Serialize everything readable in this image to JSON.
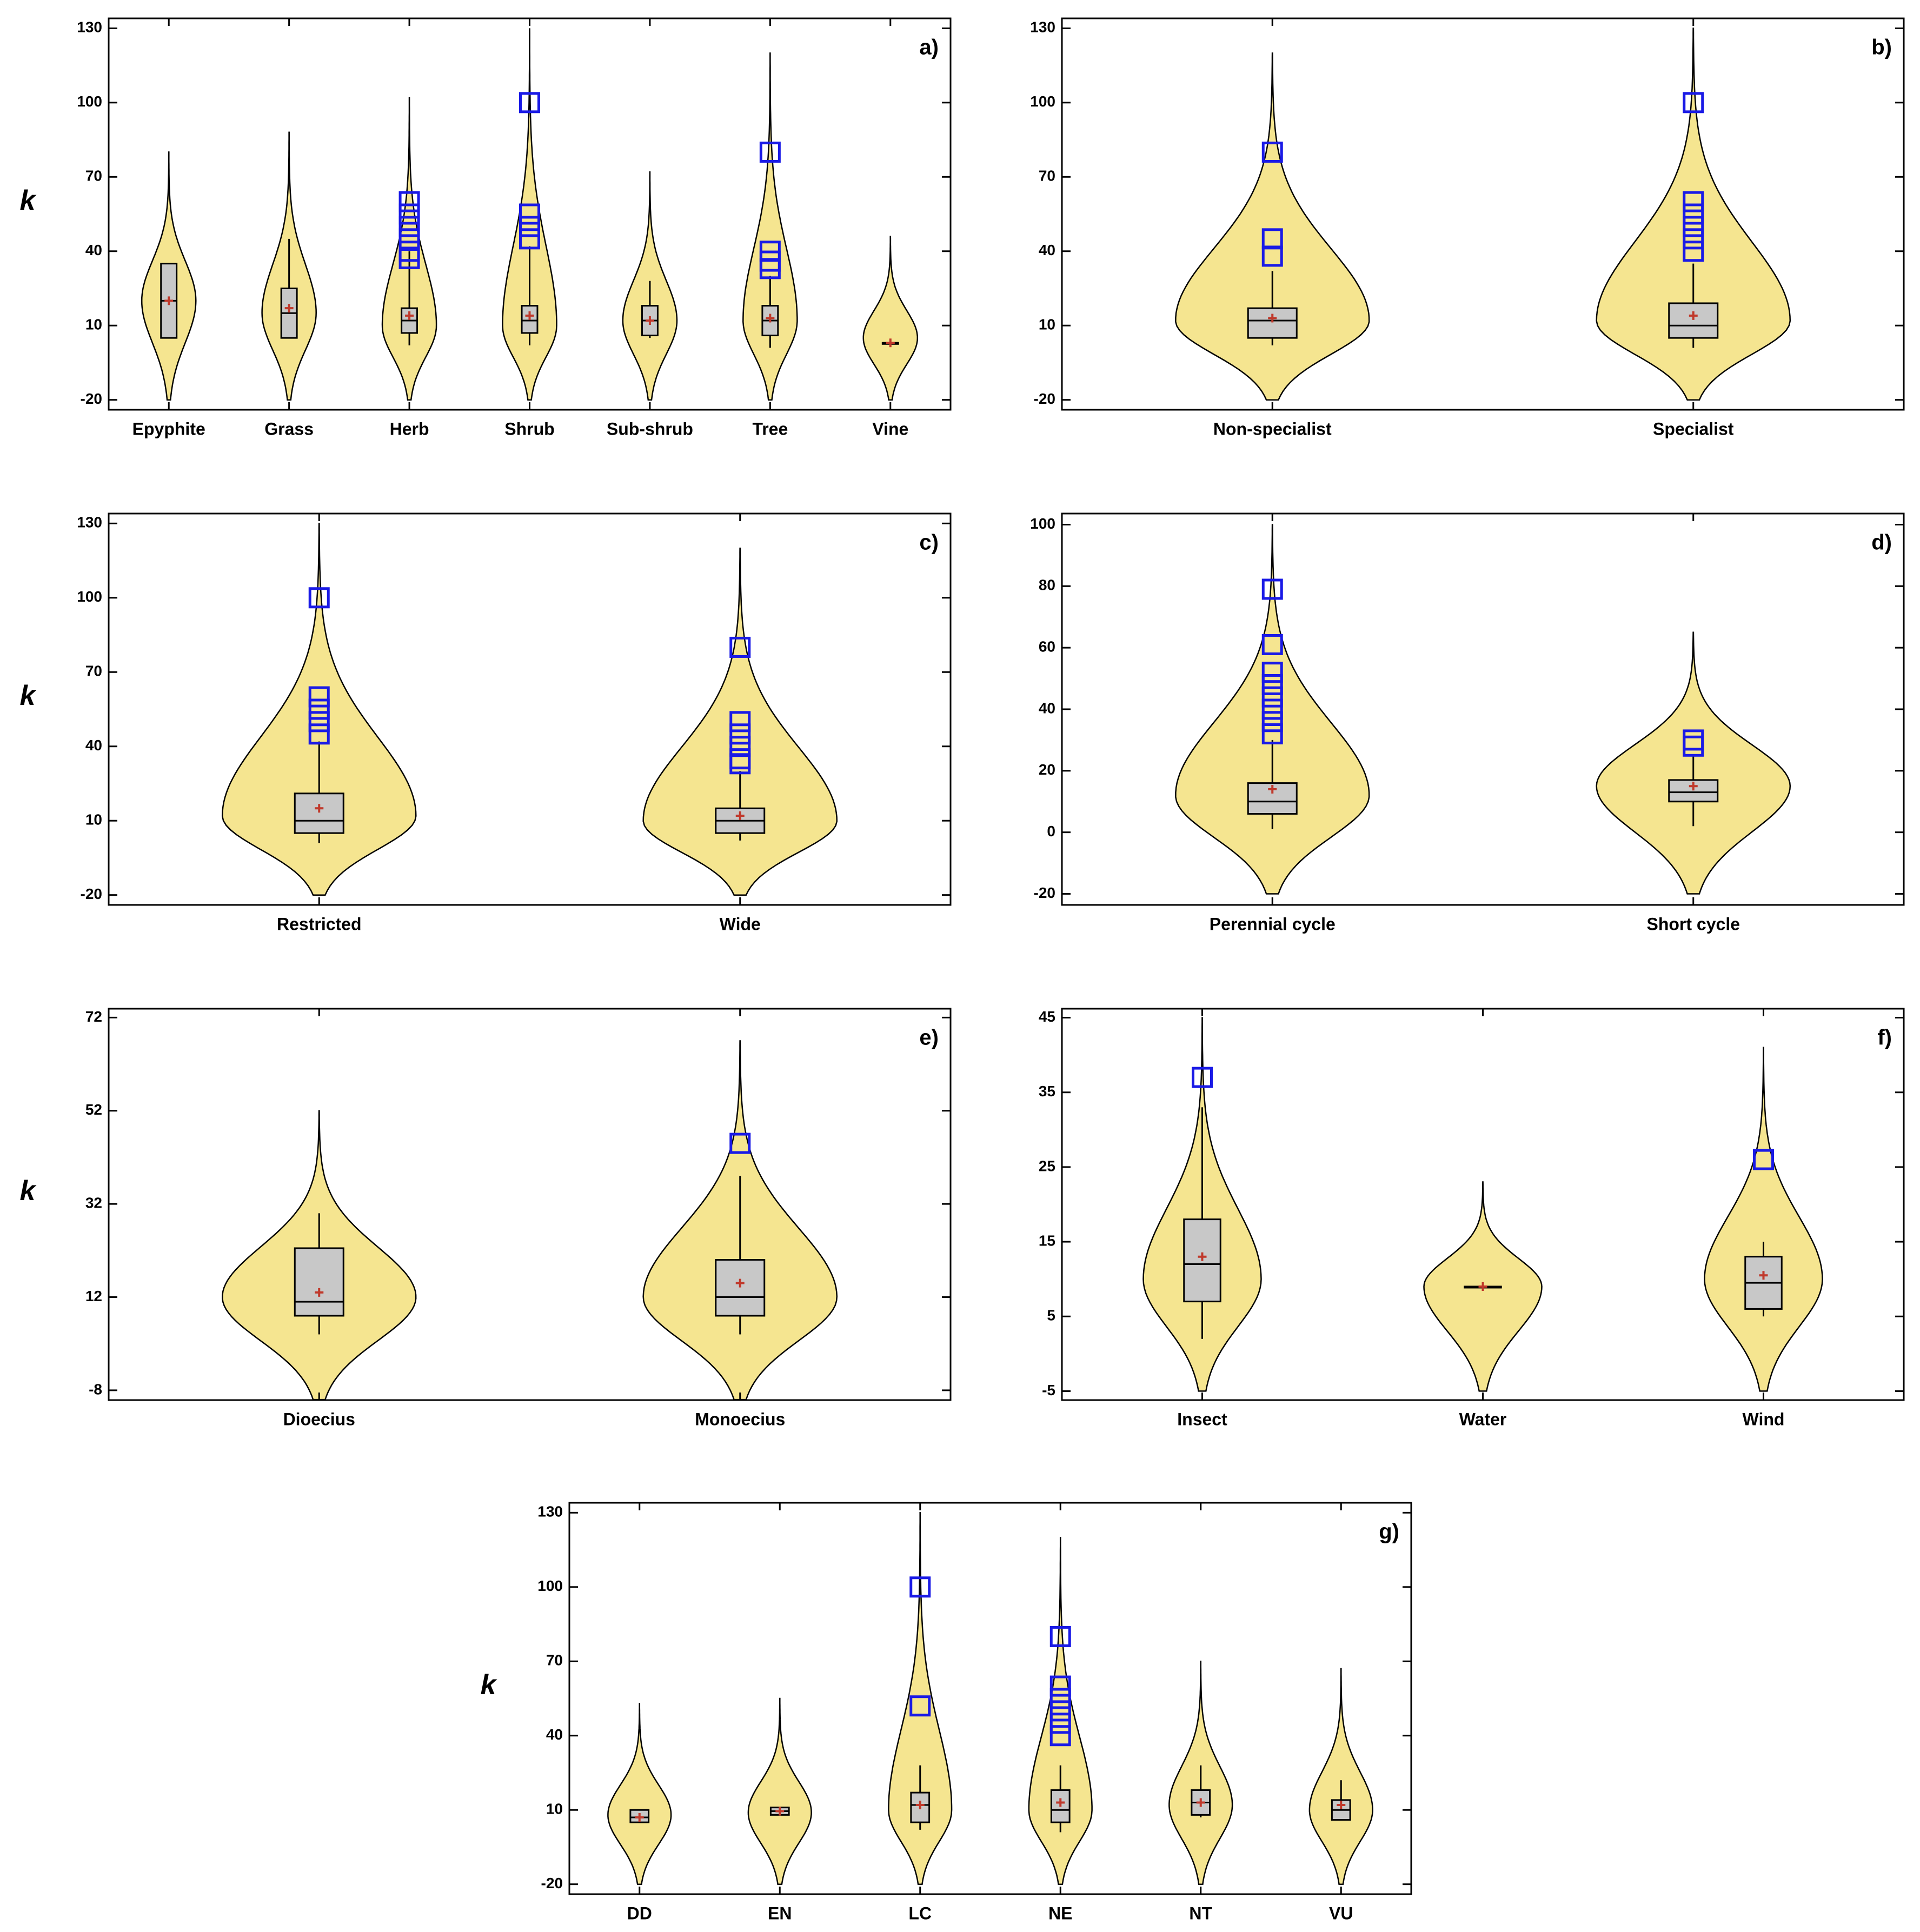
{
  "chart_data": [
    {
      "type": "violin",
      "label": "a)",
      "ylabel": "k",
      "ylim": [
        -24,
        134
      ],
      "yticks": [
        -20,
        10,
        40,
        70,
        100,
        130
      ],
      "violin_width": 0.45,
      "categories": [
        "Epyphite",
        "Grass",
        "Herb",
        "Shrub",
        "Sub-shrub",
        "Tree",
        "Vine"
      ],
      "stats": [
        {
          "low": 5,
          "q1": 5,
          "median": 20,
          "q3": 35,
          "high": 35,
          "mean": 20,
          "outliers": [],
          "violin": [
            -20,
            80,
            20
          ]
        },
        {
          "low": 5,
          "q1": 5,
          "median": 15,
          "q3": 25,
          "high": 45,
          "mean": 17,
          "outliers": [],
          "violin": [
            -20,
            88,
            15
          ]
        },
        {
          "low": 2,
          "q1": 7,
          "median": 12,
          "q3": 17,
          "high": 40,
          "mean": 14,
          "outliers": [
            60,
            55,
            50,
            45,
            40,
            37
          ],
          "violin": [
            -20,
            102,
            10
          ]
        },
        {
          "low": 2,
          "q1": 7,
          "median": 12,
          "q3": 18,
          "high": 42,
          "mean": 14,
          "outliers": [
            100,
            55,
            50,
            45
          ],
          "violin": [
            -20,
            130,
            10
          ]
        },
        {
          "low": 5,
          "q1": 6,
          "median": 12,
          "q3": 18,
          "high": 28,
          "mean": 12,
          "outliers": [],
          "violin": [
            -20,
            72,
            12
          ]
        },
        {
          "low": 1,
          "q1": 6,
          "median": 12,
          "q3": 18,
          "high": 30,
          "mean": 13,
          "outliers": [
            80,
            40,
            36,
            33
          ],
          "violin": [
            -20,
            120,
            12
          ]
        },
        {
          "low": 3,
          "q1": 3,
          "median": 3,
          "q3": 3,
          "high": 3,
          "mean": 3,
          "outliers": [],
          "violin": [
            -20,
            46,
            5
          ]
        }
      ]
    },
    {
      "type": "violin",
      "label": "b)",
      "ylim": [
        -24,
        134
      ],
      "yticks": [
        -20,
        10,
        40,
        70,
        100,
        130
      ],
      "violin_width": 0.46,
      "categories": [
        "Non-specialist",
        "Specialist"
      ],
      "stats": [
        {
          "low": 2,
          "q1": 5,
          "median": 12,
          "q3": 17,
          "high": 32,
          "mean": 13,
          "outliers": [
            80,
            45,
            38
          ],
          "violin": [
            -20,
            120,
            12
          ]
        },
        {
          "low": 1,
          "q1": 5,
          "median": 10,
          "q3": 19,
          "high": 35,
          "mean": 14,
          "outliers": [
            100,
            60,
            55,
            50,
            45,
            40
          ],
          "violin": [
            -20,
            130,
            12
          ]
        }
      ]
    },
    {
      "type": "violin",
      "label": "c)",
      "ylabel": "k",
      "ylim": [
        -24,
        134
      ],
      "yticks": [
        -20,
        10,
        40,
        70,
        100,
        130
      ],
      "violin_width": 0.46,
      "categories": [
        "Restricted",
        "Wide"
      ],
      "stats": [
        {
          "low": 1,
          "q1": 5,
          "median": 10,
          "q3": 21,
          "high": 42,
          "mean": 15,
          "outliers": [
            100,
            60,
            55,
            50,
            45
          ],
          "violin": [
            -20,
            130,
            12
          ]
        },
        {
          "low": 2,
          "q1": 5,
          "median": 10,
          "q3": 15,
          "high": 30,
          "mean": 12,
          "outliers": [
            80,
            50,
            45,
            40,
            35,
            33
          ],
          "violin": [
            -20,
            120,
            10
          ]
        }
      ]
    },
    {
      "type": "violin",
      "label": "d)",
      "ylim": [
        -23.6,
        103.6
      ],
      "yticks": [
        -20,
        0,
        20,
        40,
        60,
        80,
        100
      ],
      "violin_width": 0.46,
      "categories": [
        "Perennial cycle",
        "Short cycle"
      ],
      "stats": [
        {
          "low": 1,
          "q1": 6,
          "median": 10,
          "q3": 16,
          "high": 30,
          "mean": 14,
          "outliers": [
            79,
            61,
            52,
            48,
            44,
            40,
            36,
            32
          ],
          "violin": [
            -20,
            100,
            12
          ]
        },
        {
          "low": 2,
          "q1": 10,
          "median": 13,
          "q3": 17,
          "high": 25,
          "mean": 15,
          "outliers": [
            30,
            28
          ],
          "violin": [
            -20,
            65,
            15
          ]
        }
      ]
    },
    {
      "type": "violin",
      "label": "e)",
      "ylabel": "k",
      "ylim": [
        -10.1,
        73.9
      ],
      "yticks": [
        -8,
        12,
        32,
        52,
        72
      ],
      "violin_width": 0.46,
      "categories": [
        "Dioecius",
        "Monoecius"
      ],
      "stats": [
        {
          "low": 4,
          "q1": 8,
          "median": 11,
          "q3": 22.5,
          "high": 30,
          "mean": 13,
          "outliers": [],
          "violin": [
            -10,
            52,
            12
          ]
        },
        {
          "low": 4,
          "q1": 8,
          "median": 12,
          "q3": 20,
          "high": 38,
          "mean": 15,
          "outliers": [
            45
          ],
          "violin": [
            -10,
            67,
            12
          ]
        }
      ]
    },
    {
      "type": "violin",
      "label": "f)",
      "ylim": [
        -6.2,
        46.2
      ],
      "yticks": [
        -5,
        5,
        15,
        25,
        35,
        45
      ],
      "violin_width": 0.42,
      "categories": [
        "Insect",
        "Water",
        "Wind"
      ],
      "stats": [
        {
          "low": 2,
          "q1": 7,
          "median": 12,
          "q3": 18,
          "high": 33,
          "mean": 13,
          "outliers": [
            37
          ],
          "violin": [
            -5,
            45,
            10
          ]
        },
        {
          "low": 9,
          "q1": 9,
          "median": 9,
          "q3": 9,
          "high": 9,
          "mean": 9,
          "outliers": [],
          "violin": [
            -5,
            23,
            9
          ]
        },
        {
          "low": 5,
          "q1": 6,
          "median": 9.5,
          "q3": 13,
          "high": 15,
          "mean": 10.5,
          "outliers": [
            26
          ],
          "violin": [
            -5,
            41,
            10
          ]
        }
      ]
    },
    {
      "type": "violin",
      "label": "g)",
      "ylabel": "k",
      "ylim": [
        -24,
        134
      ],
      "yticks": [
        -20,
        10,
        40,
        70,
        100,
        130
      ],
      "violin_width": 0.45,
      "categories": [
        "DD",
        "EN",
        "LC",
        "NE",
        "NT",
        "VU"
      ],
      "stats": [
        {
          "low": 5,
          "q1": 5,
          "median": 7,
          "q3": 10,
          "high": 10,
          "mean": 7,
          "outliers": [],
          "violin": [
            -20,
            53,
            8
          ]
        },
        {
          "low": 8,
          "q1": 8,
          "median": 9.5,
          "q3": 11,
          "high": 11,
          "mean": 9.5,
          "outliers": [],
          "violin": [
            -20,
            55,
            9
          ]
        },
        {
          "low": 2,
          "q1": 5,
          "median": 12,
          "q3": 17,
          "high": 28,
          "mean": 12,
          "outliers": [
            100,
            52
          ],
          "violin": [
            -20,
            130,
            10
          ]
        },
        {
          "low": 1,
          "q1": 5,
          "median": 10,
          "q3": 18,
          "high": 28,
          "mean": 13,
          "outliers": [
            80,
            60,
            55,
            50,
            45,
            40
          ],
          "violin": [
            -20,
            120,
            10
          ]
        },
        {
          "low": 7,
          "q1": 8,
          "median": 13,
          "q3": 18,
          "high": 28,
          "mean": 13,
          "outliers": [],
          "violin": [
            -20,
            70,
            12
          ]
        },
        {
          "low": 6,
          "q1": 6,
          "median": 10,
          "q3": 14,
          "high": 22,
          "mean": 12,
          "outliers": [],
          "violin": [
            -20,
            67,
            10
          ]
        }
      ]
    }
  ]
}
